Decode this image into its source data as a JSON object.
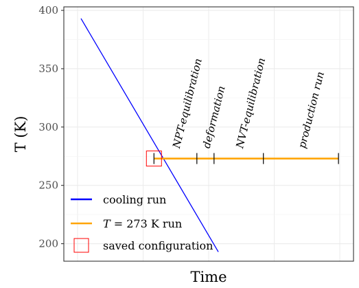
{
  "chart_data": {
    "type": "line",
    "title": "",
    "xlabel": "Time",
    "ylabel": "T (K)",
    "xlim": [
      0,
      13.5
    ],
    "ylim": [
      185,
      403
    ],
    "y_ticks": [
      200,
      250,
      300,
      350,
      400
    ],
    "y_tick_labels": [
      "200",
      "250",
      "300",
      "350",
      "400"
    ],
    "grid": true,
    "legend_position": "bottom-left",
    "series": [
      {
        "name": "cooling run",
        "color": "#0000ff",
        "x": [
          0.8,
          7.2
        ],
        "y": [
          393,
          193
        ]
      },
      {
        "name": "T = 273 K run",
        "color": "#ffa500",
        "x": [
          4.2,
          12.8
        ],
        "y": [
          273,
          273
        ]
      }
    ],
    "saved_configuration": {
      "name": "saved configuration",
      "color": "#ff0000",
      "x": 4.2,
      "y": 273
    },
    "phase_boundaries": [
      4.2,
      6.2,
      7.0,
      9.3,
      12.8
    ],
    "phases": [
      {
        "label": "NPT-equilibration",
        "start": 4.2,
        "end": 6.2
      },
      {
        "label": "deformation",
        "start": 6.2,
        "end": 7.0
      },
      {
        "label": "NVT-equilibration",
        "start": 7.0,
        "end": 9.3
      },
      {
        "label": "production run",
        "start": 9.3,
        "end": 12.8
      }
    ],
    "legend": {
      "cooling": "cooling run",
      "run_prefix": "T",
      "run_suffix": " = 273 K run",
      "saved": "saved configuration"
    }
  }
}
